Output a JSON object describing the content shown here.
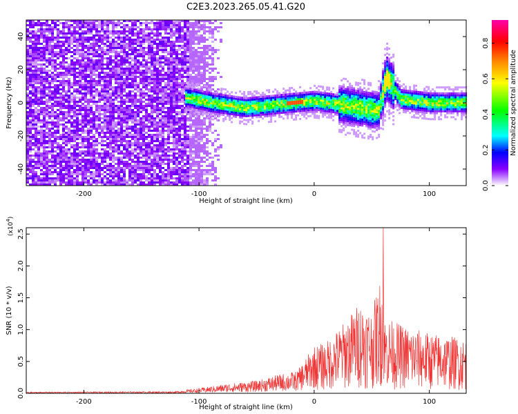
{
  "title": "C2E3.2023.265.05.41.G20",
  "chart_data": [
    {
      "type": "heatmap",
      "xlabel": "Height of straight line (km)",
      "ylabel": "Frequency (Hz)",
      "xlim": [
        -250,
        132
      ],
      "ylim": [
        -50,
        50
      ],
      "x_ticks": [
        -200,
        -100,
        0,
        100
      ],
      "y_ticks": [
        -40,
        -20,
        0,
        20,
        40
      ],
      "colorbar": {
        "label": "Normalized spectral amplitude",
        "range": [
          0.0,
          0.93
        ],
        "ticks": [
          "0.0",
          "0.2",
          "0.4",
          "0.6",
          "0.8"
        ]
      },
      "features": {
        "noise_region_x": [
          -250,
          -100
        ],
        "ridge": [
          {
            "x": -110,
            "y": 3
          },
          {
            "x": -90,
            "y": 0
          },
          {
            "x": -60,
            "y": -3
          },
          {
            "x": -30,
            "y": -1
          },
          {
            "x": 0,
            "y": 1
          },
          {
            "x": 30,
            "y": -2
          },
          {
            "x": 55,
            "y": -5
          },
          {
            "x": 62,
            "y": 15
          },
          {
            "x": 75,
            "y": 2
          },
          {
            "x": 100,
            "y": 0
          },
          {
            "x": 130,
            "y": 0
          }
        ]
      }
    },
    {
      "type": "line",
      "xlabel": "Height of straight line (km)",
      "ylabel": "SNR (10 * v/v)",
      "yscale_label": "(x10",
      "yscale_exp": "4",
      "yscale_close": ")",
      "xlim": [
        -250,
        132
      ],
      "ylim": [
        0,
        2.6
      ],
      "x_ticks": [
        -200,
        -100,
        0,
        100
      ],
      "y_ticks": [
        "0.0",
        "0.5",
        "1.0",
        "1.5",
        "2.0",
        "2.5"
      ],
      "color": "#ee3333",
      "envelope": [
        {
          "x": -250,
          "y": 0.02
        },
        {
          "x": -120,
          "y": 0.03
        },
        {
          "x": -100,
          "y": 0.08
        },
        {
          "x": -75,
          "y": 0.15
        },
        {
          "x": -50,
          "y": 0.2
        },
        {
          "x": -30,
          "y": 0.3
        },
        {
          "x": -15,
          "y": 0.35
        },
        {
          "x": 0,
          "y": 0.75
        },
        {
          "x": 10,
          "y": 0.8
        },
        {
          "x": 25,
          "y": 1.1
        },
        {
          "x": 40,
          "y": 1.45
        },
        {
          "x": 50,
          "y": 1.3
        },
        {
          "x": 59,
          "y": 1.9
        },
        {
          "x": 60,
          "y": 2.6
        },
        {
          "x": 61,
          "y": 1.2
        },
        {
          "x": 80,
          "y": 1.05
        },
        {
          "x": 100,
          "y": 0.95
        },
        {
          "x": 120,
          "y": 0.9
        },
        {
          "x": 132,
          "y": 0.85
        }
      ]
    }
  ]
}
